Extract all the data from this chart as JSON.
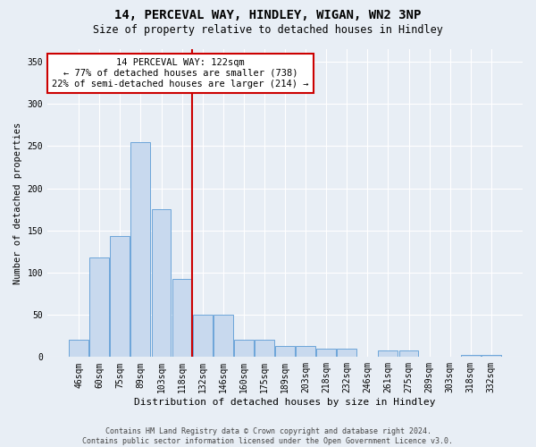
{
  "title": "14, PERCEVAL WAY, HINDLEY, WIGAN, WN2 3NP",
  "subtitle": "Size of property relative to detached houses in Hindley",
  "xlabel": "Distribution of detached houses by size in Hindley",
  "ylabel": "Number of detached properties",
  "footer_line1": "Contains HM Land Registry data © Crown copyright and database right 2024.",
  "footer_line2": "Contains public sector information licensed under the Open Government Licence v3.0.",
  "annotation_line1": "14 PERCEVAL WAY: 122sqm",
  "annotation_line2": "← 77% of detached houses are smaller (738)",
  "annotation_line3": "22% of semi-detached houses are larger (214) →",
  "bar_categories": [
    "46sqm",
    "60sqm",
    "75sqm",
    "89sqm",
    "103sqm",
    "118sqm",
    "132sqm",
    "146sqm",
    "160sqm",
    "175sqm",
    "189sqm",
    "203sqm",
    "218sqm",
    "232sqm",
    "246sqm",
    "261sqm",
    "275sqm",
    "289sqm",
    "303sqm",
    "318sqm",
    "332sqm"
  ],
  "bar_values": [
    20,
    118,
    143,
    255,
    175,
    93,
    50,
    50,
    21,
    21,
    13,
    13,
    10,
    10,
    0,
    8,
    8,
    0,
    0,
    3,
    3
  ],
  "bar_color": "#c8d9ee",
  "bar_edge_color": "#5b9bd5",
  "vline_color": "#cc0000",
  "vline_position": 5.5,
  "ylim": [
    0,
    365
  ],
  "yticks": [
    0,
    50,
    100,
    150,
    200,
    250,
    300,
    350
  ],
  "bg_color": "#e8eef5",
  "plot_bg_color": "#e8eef5",
  "grid_color": "#ffffff",
  "annotation_box_facecolor": "#ffffff",
  "annotation_box_edge": "#cc0000",
  "title_fontsize": 10,
  "subtitle_fontsize": 8.5,
  "ylabel_fontsize": 7.5,
  "xlabel_fontsize": 8,
  "tick_fontsize": 7,
  "annotation_fontsize": 7.5,
  "footer_fontsize": 6
}
